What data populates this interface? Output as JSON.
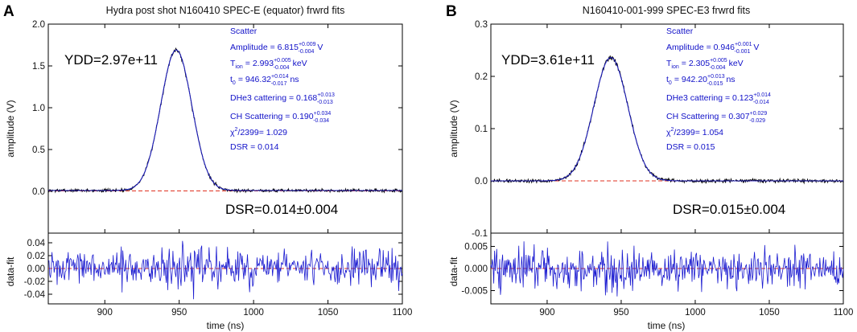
{
  "chart_data": [
    {
      "type": "line",
      "panel_letter": "A",
      "title": "Hydra post shot N160410 SPEC-E (equator) frwrd fits",
      "xlabel": "time (ns)",
      "ylabel": "amplitude (V)",
      "xlim": [
        862,
        1100
      ],
      "x_ticks": [
        900,
        950,
        1000,
        1050,
        1100
      ],
      "x_tick_labels": [
        "900",
        "950",
        "1000",
        "1050",
        "1100"
      ],
      "ylim": [
        -0.5,
        2.0
      ],
      "y_ticks": [
        0.0,
        0.5,
        1.0,
        1.5,
        2.0
      ],
      "y_tick_labels": [
        "0.0",
        "0.5",
        "1.0",
        "1.5",
        "2.0"
      ],
      "peak": {
        "center": 948,
        "amplitude": 1.68,
        "sigma": 10.5,
        "baseline": 0.01,
        "noise": 0.013
      },
      "ydd_text": "YDD=2.97e+11",
      "dsr_text": "DSR=0.014±0.004",
      "fit_box": {
        "header": "Scatter",
        "amp_label": "Amplitude  =   6.815",
        "amp_sup": "+0.009",
        "amp_sub": "-0.004",
        "amp_unit": "V",
        "tion_main": "T",
        "tion_sub_ion": "ion",
        "tion_value": "=  2.993",
        "tion_sup": "+0.005",
        "tion_sub": "-0.004",
        "tion_unit": "keV",
        "t0_main": "t",
        "t0_sub0": "0",
        "t0_value": "=  946.32",
        "t0_sup": "+0.014",
        "t0_sub": "-0.017",
        "t0_unit": "ns",
        "dhe3_label": "DHe3 cattering  =  0.168",
        "dhe3_sup": "+0.013",
        "dhe3_sub": "-0.013",
        "ch_label": "CH Scattering  =  0.190",
        "ch_sup": "+0.034",
        "ch_sub": "-0.034",
        "chi_label": "χ",
        "chi_rest": "/2399=    1.029",
        "dsr_label": "DSR =  0.014"
      },
      "residual": {
        "ylabel": "data-fit",
        "ylim": [
          -0.055,
          0.055
        ],
        "y_ticks": [
          -0.04,
          -0.02,
          0.0,
          0.02,
          0.04
        ],
        "y_tick_labels": [
          "-0.04",
          "-0.02",
          "0.00",
          "0.02",
          "0.04"
        ],
        "noise": 0.02
      },
      "colors": {
        "data": "#000000",
        "fit": "#1a1ad0",
        "baseline_fit": "#e03020",
        "residual": "#1a1ad0"
      }
    },
    {
      "type": "line",
      "panel_letter": "B",
      "title": "N160410-001-999 SPEC-E3 frwrd fits",
      "xlabel": "time (ns)",
      "ylabel": "amplitude (V)",
      "xlim": [
        862,
        1100
      ],
      "x_ticks": [
        900,
        950,
        1000,
        1050,
        1100
      ],
      "x_tick_labels": [
        "900",
        "950",
        "1000",
        "1050",
        "1100"
      ],
      "ylim": [
        -0.1,
        0.3
      ],
      "y_ticks": [
        -0.1,
        0.0,
        0.1,
        0.2,
        0.3
      ],
      "y_tick_labels": [
        "-0.1",
        "0.0",
        "0.1",
        "0.2",
        "0.3"
      ],
      "peak": {
        "center": 943,
        "amplitude": 0.236,
        "sigma": 11.5,
        "baseline": 0.0,
        "noise": 0.0025
      },
      "ydd_text": "YDD=3.61e+11",
      "dsr_text": "DSR=0.015±0.004",
      "fit_box": {
        "header": "Scatter",
        "amp_label": "Amplitude  =   0.946",
        "amp_sup": "+0.001",
        "amp_sub": "-0.001",
        "amp_unit": "V",
        "tion_main": "T",
        "tion_sub_ion": "ion",
        "tion_value": "=  2.305",
        "tion_sup": "+0.005",
        "tion_sub": "-0.004",
        "tion_unit": "keV",
        "t0_main": "t",
        "t0_sub0": "0",
        "t0_value": "=  942.20",
        "t0_sup": "+0.013",
        "t0_sub": "-0.015",
        "t0_unit": "ns",
        "dhe3_label": "DHe3 cattering  =  0.123",
        "dhe3_sup": "+0.014",
        "dhe3_sub": "-0.014",
        "ch_label": "CH Scattering  =  0.307",
        "ch_sup": "+0.029",
        "ch_sub": "-0.029",
        "chi_label": "χ",
        "chi_rest": "/2399=    1.054",
        "dsr_label": "DSR =  0.015"
      },
      "residual": {
        "ylabel": "data-fit",
        "ylim": [
          -0.008,
          0.008
        ],
        "y_ticks": [
          -0.005,
          0.0,
          0.005
        ],
        "y_tick_labels": [
          "-0.005",
          "0.000",
          "0.005"
        ],
        "noise": 0.003
      },
      "colors": {
        "data": "#000000",
        "fit": "#1a1ad0",
        "baseline_fit": "#e03020",
        "residual": "#1a1ad0"
      }
    }
  ]
}
